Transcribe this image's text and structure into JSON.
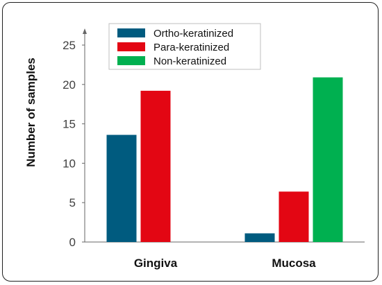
{
  "chart_data": {
    "type": "bar",
    "categories": [
      "Gingiva",
      "Mucosa"
    ],
    "series": [
      {
        "name": "Ortho-keratinized",
        "values": [
          13.6,
          1.1
        ],
        "color": "#005b7f"
      },
      {
        "name": "Para-keratinized",
        "values": [
          19.2,
          6.4
        ],
        "color": "#e30613"
      },
      {
        "name": "Non-keratinized",
        "values": [
          null,
          20.9
        ],
        "color": "#00b050"
      }
    ],
    "ylabel": "Number of samples",
    "xlabel": "",
    "ylim": [
      0,
      25
    ],
    "yticks": [
      0,
      5,
      10,
      15,
      20,
      25
    ],
    "grid": false,
    "legend_position": "top-left"
  }
}
